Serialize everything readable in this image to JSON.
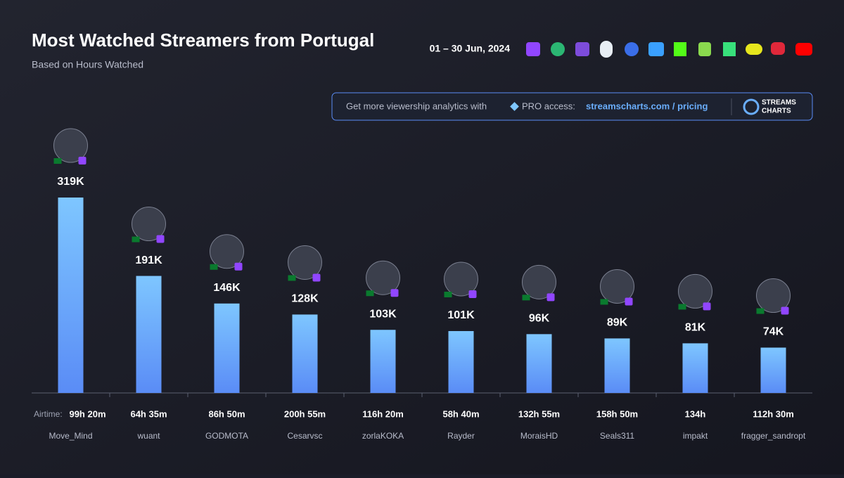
{
  "chart_data": {
    "type": "bar",
    "title": "Most Watched Streamers from Portugal",
    "subtitle": "Based on Hours Watched",
    "date_range": "01 – 30 Jun, 2024",
    "promo": {
      "text": "Get more viewership analytics with",
      "pro": "PRO access:",
      "link": "streamscharts.com / pricing",
      "brand_top": "STREAMS",
      "brand_bottom": "CHARTS"
    },
    "airtime_label": "Airtime:",
    "categories": [
      "Move_Mind",
      "wuant",
      "GODMOTA",
      "Cesarvsc",
      "zorlaKOKA",
      "Rayder",
      "MoraisHD",
      "Seals311",
      "impakt",
      "fragger_sandropt"
    ],
    "airtime": [
      "99h 20m",
      "64h 35m",
      "86h 50m",
      "200h 55m",
      "116h 20m",
      "58h 40m",
      "132h 55m",
      "158h 50m",
      "134h",
      "112h 30m"
    ],
    "values": [
      319000,
      191000,
      146000,
      128000,
      103000,
      101000,
      96000,
      89000,
      81000,
      74000
    ],
    "value_labels": [
      "319K",
      "191K",
      "146K",
      "128K",
      "103K",
      "101K",
      "96K",
      "89K",
      "81K",
      "74K"
    ],
    "color": "#6aaefc"
  }
}
